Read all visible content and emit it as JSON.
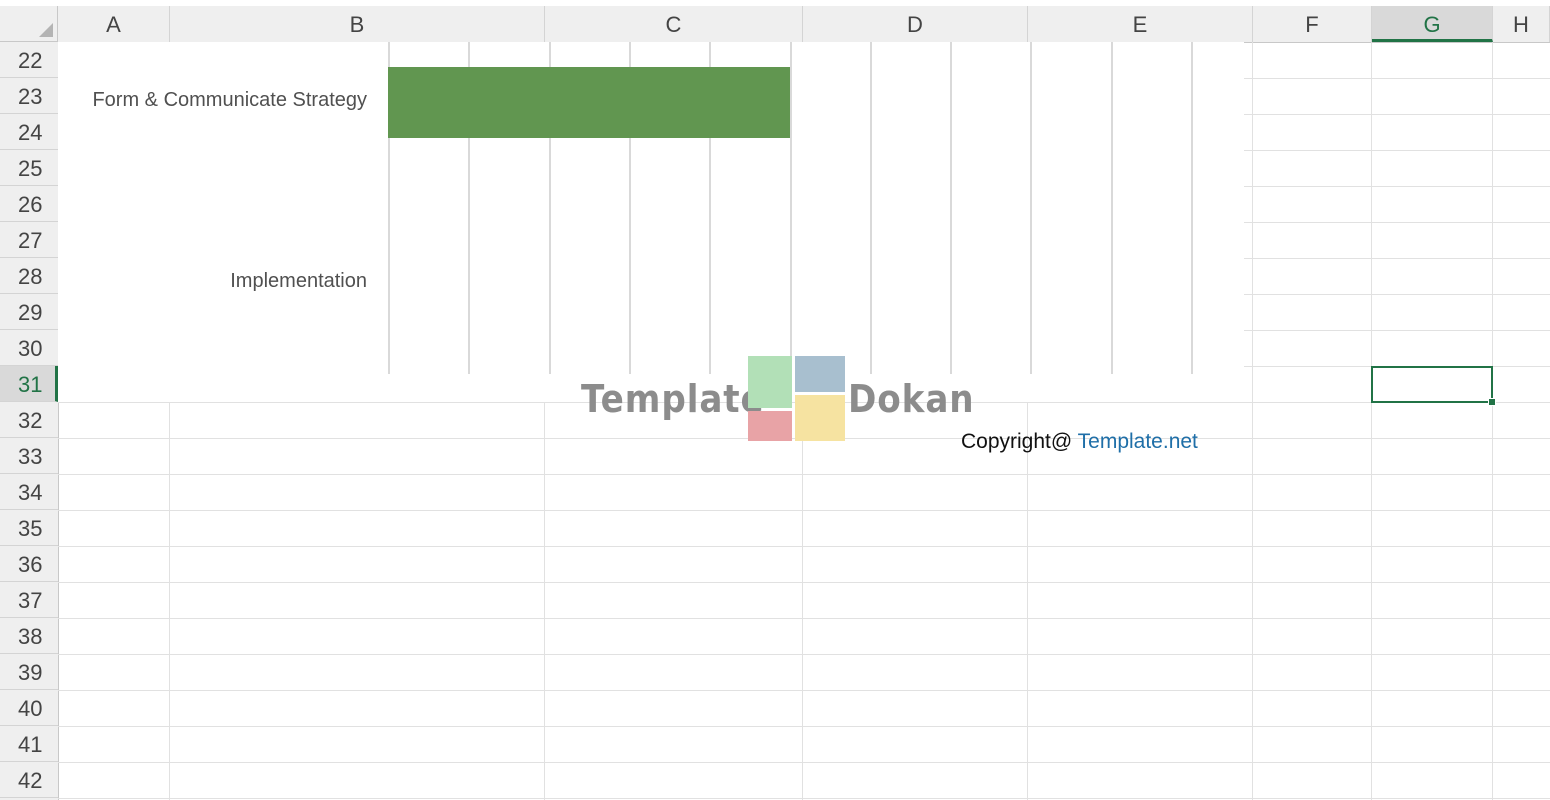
{
  "columns": [
    {
      "id": "col-a",
      "label": "A"
    },
    {
      "id": "col-b",
      "label": "B"
    },
    {
      "id": "col-c",
      "label": "C"
    },
    {
      "id": "col-d",
      "label": "D"
    },
    {
      "id": "col-e",
      "label": "E"
    },
    {
      "id": "col-f",
      "label": "F"
    },
    {
      "id": "col-g",
      "label": "G"
    },
    {
      "id": "col-h",
      "label": "H"
    }
  ],
  "rows": [
    "22",
    "23",
    "24",
    "25",
    "26",
    "27",
    "28",
    "29",
    "30",
    "31",
    "32",
    "33",
    "34",
    "35",
    "36",
    "37",
    "38",
    "39",
    "40",
    "41",
    "42"
  ],
  "selection": {
    "column": "G",
    "row": "31"
  },
  "chart_data": {
    "type": "bar",
    "orientation": "horizontal",
    "categories": [
      "Form & Communicate Strategy",
      "Implementation"
    ],
    "series": [
      {
        "values": [
          5,
          0
        ],
        "color": "#619650"
      }
    ],
    "xlim": [
      0,
      10.75
    ],
    "grid": true,
    "colors": {
      "bar": "#619650"
    }
  },
  "watermark": {
    "left_text": "Template",
    "right_text": "Dokan",
    "colors": [
      "#b2e0b7",
      "#a8bfcf",
      "#e8a3a6",
      "#f6e3a1"
    ]
  },
  "copyright": {
    "prefix": "Copyright@ ",
    "link": "Template.net"
  }
}
